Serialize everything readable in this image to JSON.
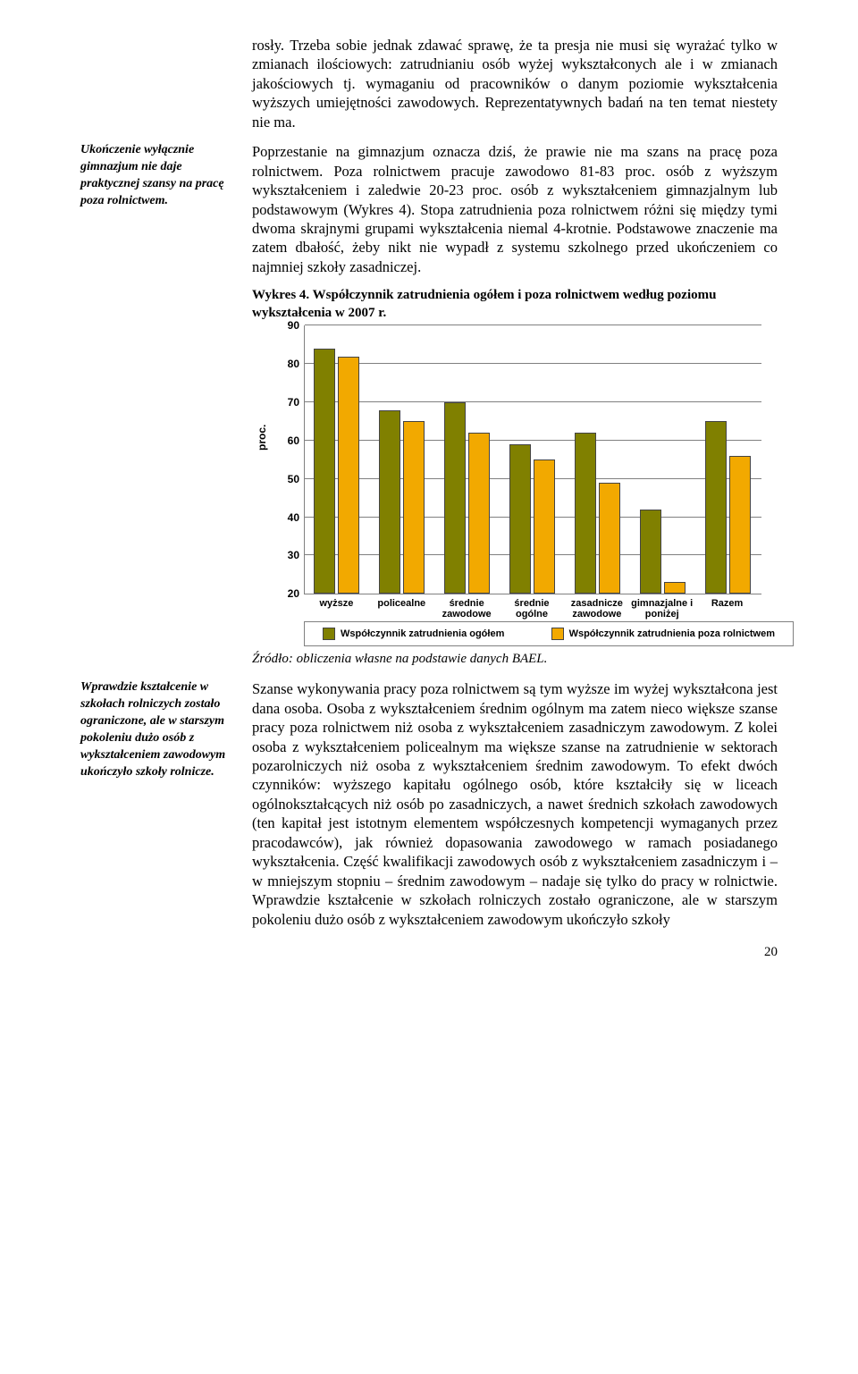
{
  "para1": "rosły. Trzeba sobie jednak zdawać sprawę, że ta presja nie musi się wyrażać tylko w zmianach ilościowych: zatrudnianiu osób wyżej wykształconych ale i w zmianach jakościowych tj. wymaganiu od pracowników o danym poziomie wykształcenia wyższych umiejętności zawodowych. Reprezentatywnych badań na ten temat niestety nie ma.",
  "margin1": "Ukończenie wyłącznie gimnazjum nie daje praktycznej szansy na pracę poza rolnictwem.",
  "para2": "Poprzestanie na gimnazjum oznacza dziś, że prawie nie ma szans na pracę poza rolnictwem. Poza rolnictwem pracuje zawodowo 81-83 proc. osób z wyższym wykształceniem i zaledwie 20-23 proc. osób z wykształceniem gimnazjalnym lub podstawowym (Wykres 4). Stopa zatrudnienia poza rolnictwem różni się między tymi dwoma skrajnymi grupami wykształcenia niemal 4-krotnie. Podstawowe znaczenie ma zatem dbałość, żeby nikt nie wypadł z systemu szkolnego przed ukończeniem co najmniej szkoły zasadniczej.",
  "chart_title": "Wykres 4. Współczynnik zatrudnienia ogółem i poza rolnictwem według poziomu wykształcenia w 2007 r.",
  "chart": {
    "ylabel": "proc.",
    "ymin": 20,
    "ymax": 90,
    "ystep": 10,
    "colors": {
      "a": "#808000",
      "b": "#f2a900"
    },
    "grid_color": "#808080",
    "categories": [
      {
        "label": "wyższe",
        "a": 84,
        "b": 82
      },
      {
        "label": "policealne",
        "a": 68,
        "b": 65
      },
      {
        "label": "średnie zawodowe",
        "a": 70,
        "b": 62
      },
      {
        "label": "średnie ogólne",
        "a": 59,
        "b": 55
      },
      {
        "label": "zasadnicze zawodowe",
        "a": 62,
        "b": 49
      },
      {
        "label": "gimnazjalne i poniżej",
        "a": 42,
        "b": 23
      },
      {
        "label": "Razem",
        "a": 65,
        "b": 56
      }
    ],
    "legend_a": "Współczynnik zatrudnienia ogółem",
    "legend_b": "Współczynnik zatrudnienia poza rolnictwem"
  },
  "source": "Źródło: obliczenia własne na podstawie danych BAEL.",
  "margin2": "Wprawdzie kształcenie w szkołach rolniczych zostało ograniczone, ale w starszym pokoleniu dużo osób z wykształceniem zawodowym ukończyło szkoły rolnicze.",
  "para3": "Szanse wykonywania pracy poza rolnictwem są tym wyższe im wyżej wykształcona jest dana osoba. Osoba z wykształceniem średnim ogólnym ma zatem nieco większe szanse pracy poza rolnictwem niż osoba z wykształceniem zasadniczym zawodowym. Z kolei osoba z wykształceniem policealnym ma większe szanse na zatrudnienie w sektorach pozarolniczych niż osoba z wykształceniem średnim zawodowym. To efekt dwóch czynników: wyższego kapitału ogólnego osób, które kształciły się w liceach ogólnokształcących niż osób po zasadniczych, a nawet średnich szkołach zawodowych (ten kapitał jest istotnym elementem współczesnych kompetencji wymaganych przez pracodawców), jak również dopasowania zawodowego w ramach posiadanego wykształcenia. Część kwalifikacji zawodowych osób z wykształceniem zasadniczym i – w mniejszym stopniu – średnim zawodowym – nadaje się tylko do pracy w rolnictwie. Wprawdzie kształcenie w szkołach rolniczych zostało ograniczone, ale w starszym pokoleniu dużo osób z wykształceniem zawodowym ukończyło szkoły",
  "page_number": "20"
}
